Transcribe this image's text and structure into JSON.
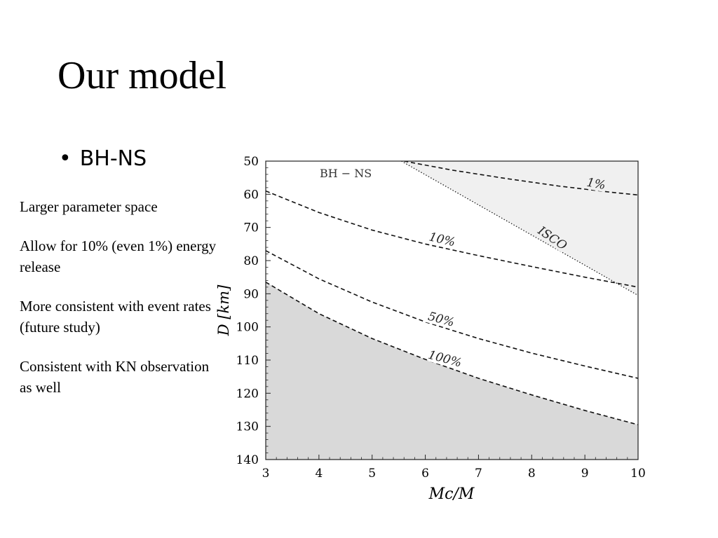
{
  "slide": {
    "title": "Our model",
    "bullet": "BH-NS",
    "notes": [
      "Larger parameter space",
      "Allow for 10% (even 1%) energy release",
      "More consistent with event rates (future study)",
      "Consistent with KN observation as well"
    ]
  },
  "chart_data": {
    "type": "line",
    "title": "BH − NS",
    "xlabel": "Mc/M",
    "ylabel": "D [km]",
    "xlim": [
      3,
      10
    ],
    "ylim": [
      50,
      140
    ],
    "y_inverted": true,
    "grid": false,
    "x_ticks": [
      3,
      4,
      5,
      6,
      7,
      8,
      9,
      10
    ],
    "y_ticks": [
      50,
      60,
      70,
      80,
      90,
      100,
      110,
      120,
      130,
      140
    ],
    "series": [
      {
        "name": "1%",
        "style": "dashed",
        "x": [
          5.6,
          6.5,
          7.5,
          8.5,
          9.5,
          10
        ],
        "y": [
          50,
          52.7,
          55.2,
          57.5,
          59.4,
          60.2
        ]
      },
      {
        "name": "10%",
        "style": "dashed",
        "x": [
          3,
          4,
          5,
          6,
          7,
          8,
          9,
          10
        ],
        "y": [
          59,
          65.5,
          70.8,
          75,
          78.5,
          81.8,
          85,
          88
        ]
      },
      {
        "name": "50%",
        "style": "dashed",
        "x": [
          3,
          4,
          5,
          6,
          7,
          8,
          9,
          10
        ],
        "y": [
          77,
          85.5,
          92.5,
          98.5,
          103.5,
          107.9,
          111.8,
          115.5
        ]
      },
      {
        "name": "100%",
        "style": "dashed",
        "x": [
          3,
          4,
          5,
          6,
          7,
          8,
          9,
          10
        ],
        "y": [
          86.5,
          96,
          103.5,
          109.8,
          115.5,
          120.5,
          125.2,
          129.5
        ]
      },
      {
        "name": "ISCO",
        "style": "dotted",
        "x": [
          5.55,
          10
        ],
        "y": [
          50,
          90.5
        ]
      }
    ],
    "shaded_regions": [
      {
        "name": "below 100%",
        "color": "#d9d9d9"
      },
      {
        "name": "above ISCO",
        "color": "#f0f0f0"
      }
    ]
  }
}
